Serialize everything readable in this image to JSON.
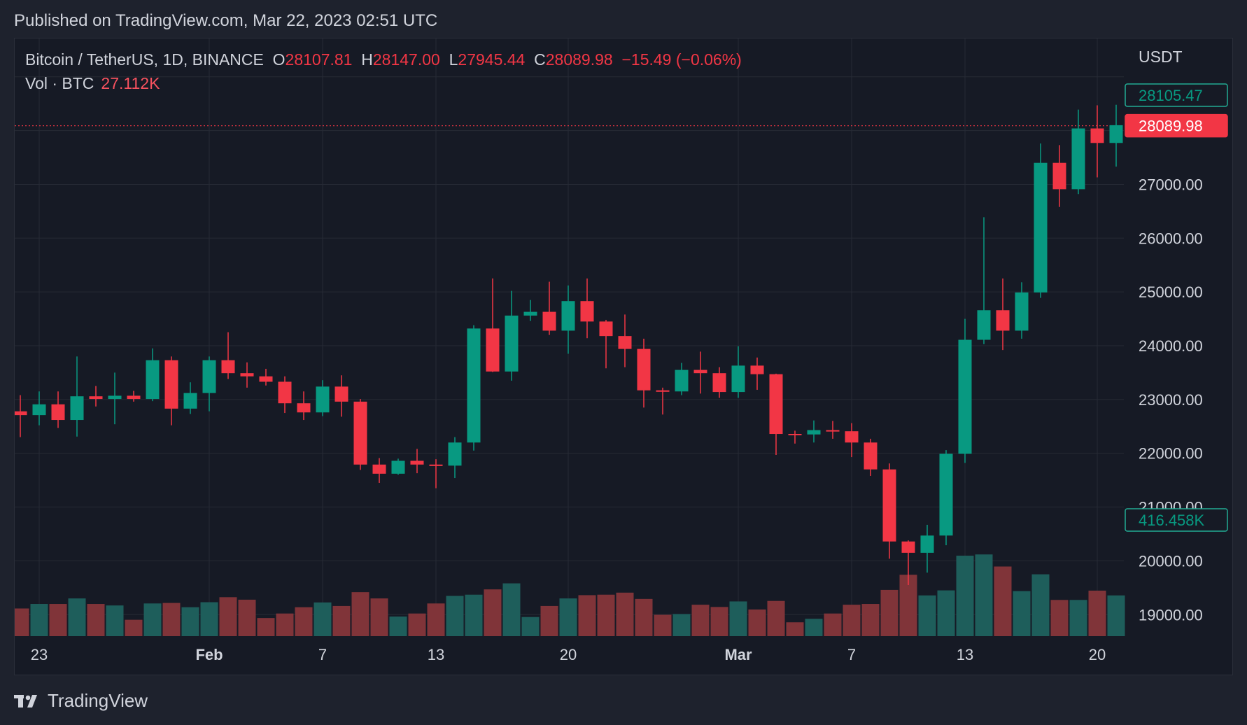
{
  "published": "Published on TradingView.com, Mar 22, 2023 02:51 UTC",
  "legend": {
    "symbol": "Bitcoin / TetherUS, 1D, BINANCE",
    "open_label": "O",
    "open": "28107.81",
    "high_label": "H",
    "high": "28147.00",
    "low_label": "L",
    "low": "27945.44",
    "close_label": "C",
    "close": "28089.98",
    "change": "−15.49 (−0.06%)",
    "vol_label": "Vol · BTC",
    "vol_value": "27.112K"
  },
  "currency": "USDT",
  "brand": "TradingView",
  "colors": {
    "up": "#089981",
    "down": "#f23645",
    "vol_up": "#1e5e5b",
    "vol_down": "#803439",
    "grid": "#262a35",
    "axis_text": "#d1d4dc",
    "tag_prev_border": "#22ab94",
    "tag_vol_border": "#22ab94"
  },
  "chart_data": {
    "type": "candlestick",
    "symbol": "Bitcoin / TetherUS",
    "interval": "1D",
    "exchange": "BINANCE",
    "price_axis": {
      "ticks": [
        "19000.00",
        "20000.00",
        "21000.00",
        "22000.00",
        "23000.00",
        "24000.00",
        "25000.00",
        "26000.00",
        "27000.00"
      ],
      "range": [
        18600,
        29400
      ]
    },
    "time_axis": {
      "labels": [
        {
          "text": "23",
          "bold": false,
          "index": 1
        },
        {
          "text": "Feb",
          "bold": true,
          "index": 10
        },
        {
          "text": "7",
          "bold": false,
          "index": 16
        },
        {
          "text": "13",
          "bold": false,
          "index": 22
        },
        {
          "text": "20",
          "bold": false,
          "index": 29
        },
        {
          "text": "Mar",
          "bold": true,
          "index": 38
        },
        {
          "text": "7",
          "bold": false,
          "index": 44
        },
        {
          "text": "13",
          "bold": false,
          "index": 50
        },
        {
          "text": "20",
          "bold": false,
          "index": 57
        }
      ]
    },
    "price_tags": {
      "prev_close": "28105.47",
      "last": "28089.98",
      "last_value": 28089.98,
      "volume": "416.458K"
    },
    "volume_max": 71000,
    "candles": [
      {
        "date": "Jan 22",
        "o": 22780,
        "h": 23080,
        "l": 22300,
        "c": 22710,
        "v": 11000
      },
      {
        "date": "Jan 23",
        "o": 22710,
        "h": 23150,
        "l": 22520,
        "c": 22910,
        "v": 12800
      },
      {
        "date": "Jan 24",
        "o": 22910,
        "h": 23150,
        "l": 22470,
        "c": 22620,
        "v": 12800
      },
      {
        "date": "Jan 25",
        "o": 22620,
        "h": 23800,
        "l": 22310,
        "c": 23060,
        "v": 15000
      },
      {
        "date": "Jan 26",
        "o": 23060,
        "h": 23250,
        "l": 22870,
        "c": 23010,
        "v": 12800
      },
      {
        "date": "Jan 27",
        "o": 23010,
        "h": 23500,
        "l": 22540,
        "c": 23070,
        "v": 12200
      },
      {
        "date": "Jan 28",
        "o": 23070,
        "h": 23160,
        "l": 22960,
        "c": 23010,
        "v": 6500
      },
      {
        "date": "Jan 29",
        "o": 23010,
        "h": 23950,
        "l": 22970,
        "c": 23730,
        "v": 13000
      },
      {
        "date": "Jan 30",
        "o": 23730,
        "h": 23800,
        "l": 22520,
        "c": 22830,
        "v": 13200
      },
      {
        "date": "Jan 31",
        "o": 22830,
        "h": 23320,
        "l": 22730,
        "c": 23120,
        "v": 11500
      },
      {
        "date": "Feb 1",
        "o": 23120,
        "h": 23800,
        "l": 22780,
        "c": 23730,
        "v": 13500
      },
      {
        "date": "Feb 2",
        "o": 23730,
        "h": 24250,
        "l": 23380,
        "c": 23490,
        "v": 15500
      },
      {
        "date": "Feb 3",
        "o": 23490,
        "h": 23690,
        "l": 23220,
        "c": 23430,
        "v": 14500
      },
      {
        "date": "Feb 4",
        "o": 23430,
        "h": 23570,
        "l": 23260,
        "c": 23330,
        "v": 7200
      },
      {
        "date": "Feb 5",
        "o": 23330,
        "h": 23430,
        "l": 22750,
        "c": 22930,
        "v": 9000
      },
      {
        "date": "Feb 6",
        "o": 22930,
        "h": 23150,
        "l": 22620,
        "c": 22760,
        "v": 11500
      },
      {
        "date": "Feb 7",
        "o": 22760,
        "h": 23360,
        "l": 22690,
        "c": 23240,
        "v": 13400
      },
      {
        "date": "Feb 8",
        "o": 23240,
        "h": 23450,
        "l": 22680,
        "c": 22960,
        "v": 12000
      },
      {
        "date": "Feb 9",
        "o": 22960,
        "h": 23010,
        "l": 21690,
        "c": 21790,
        "v": 17500
      },
      {
        "date": "Feb 10",
        "o": 21790,
        "h": 21910,
        "l": 21450,
        "c": 21620,
        "v": 15000
      },
      {
        "date": "Feb 11",
        "o": 21620,
        "h": 21900,
        "l": 21600,
        "c": 21860,
        "v": 7800
      },
      {
        "date": "Feb 12",
        "o": 21860,
        "h": 22080,
        "l": 21630,
        "c": 21790,
        "v": 9000
      },
      {
        "date": "Feb 13",
        "o": 21790,
        "h": 21890,
        "l": 21350,
        "c": 21770,
        "v": 13000
      },
      {
        "date": "Feb 14",
        "o": 21770,
        "h": 22300,
        "l": 21540,
        "c": 22200,
        "v": 16000
      },
      {
        "date": "Feb 15",
        "o": 22200,
        "h": 24380,
        "l": 22050,
        "c": 24320,
        "v": 16500
      },
      {
        "date": "Feb 16",
        "o": 24320,
        "h": 25250,
        "l": 23510,
        "c": 23520,
        "v": 18600
      },
      {
        "date": "Feb 17",
        "o": 23520,
        "h": 25020,
        "l": 23350,
        "c": 24560,
        "v": 21000
      },
      {
        "date": "Feb 18",
        "o": 24560,
        "h": 24850,
        "l": 24460,
        "c": 24630,
        "v": 7600
      },
      {
        "date": "Feb 19",
        "o": 24630,
        "h": 25190,
        "l": 24200,
        "c": 24280,
        "v": 12000
      },
      {
        "date": "Feb 20",
        "o": 24280,
        "h": 25120,
        "l": 23850,
        "c": 24830,
        "v": 15000
      },
      {
        "date": "Feb 21",
        "o": 24830,
        "h": 25250,
        "l": 24140,
        "c": 24450,
        "v": 16300
      },
      {
        "date": "Feb 22",
        "o": 24450,
        "h": 24480,
        "l": 23580,
        "c": 24180,
        "v": 16500
      },
      {
        "date": "Feb 23",
        "o": 24180,
        "h": 24580,
        "l": 23600,
        "c": 23940,
        "v": 17300
      },
      {
        "date": "Feb 24",
        "o": 23940,
        "h": 24130,
        "l": 22850,
        "c": 23170,
        "v": 14800
      },
      {
        "date": "Feb 25",
        "o": 23170,
        "h": 23220,
        "l": 22720,
        "c": 23150,
        "v": 8500
      },
      {
        "date": "Feb 26",
        "o": 23150,
        "h": 23680,
        "l": 23080,
        "c": 23550,
        "v": 8800
      },
      {
        "date": "Feb 27",
        "o": 23550,
        "h": 23890,
        "l": 23110,
        "c": 23490,
        "v": 12500
      },
      {
        "date": "Feb 28",
        "o": 23490,
        "h": 23600,
        "l": 23030,
        "c": 23140,
        "v": 11600
      },
      {
        "date": "Mar 1",
        "o": 23140,
        "h": 23990,
        "l": 23030,
        "c": 23630,
        "v": 13800
      },
      {
        "date": "Mar 2",
        "o": 23630,
        "h": 23780,
        "l": 23180,
        "c": 23470,
        "v": 10600
      },
      {
        "date": "Mar 3",
        "o": 23470,
        "h": 23480,
        "l": 21970,
        "c": 22360,
        "v": 14000
      },
      {
        "date": "Mar 4",
        "o": 22360,
        "h": 22420,
        "l": 22180,
        "c": 22350,
        "v": 5500
      },
      {
        "date": "Mar 5",
        "o": 22350,
        "h": 22610,
        "l": 22200,
        "c": 22430,
        "v": 6900
      },
      {
        "date": "Mar 6",
        "o": 22430,
        "h": 22600,
        "l": 22270,
        "c": 22410,
        "v": 9000
      },
      {
        "date": "Mar 7",
        "o": 22410,
        "h": 22560,
        "l": 21930,
        "c": 22200,
        "v": 12500
      },
      {
        "date": "Mar 8",
        "o": 22200,
        "h": 22270,
        "l": 21580,
        "c": 21700,
        "v": 12800
      },
      {
        "date": "Mar 9",
        "o": 21700,
        "h": 21810,
        "l": 20040,
        "c": 20360,
        "v": 18400
      },
      {
        "date": "Mar 10",
        "o": 20360,
        "h": 20380,
        "l": 19550,
        "c": 20150,
        "v": 24400
      },
      {
        "date": "Mar 11",
        "o": 20150,
        "h": 20670,
        "l": 19780,
        "c": 20470,
        "v": 16200
      },
      {
        "date": "Mar 12",
        "o": 20470,
        "h": 22060,
        "l": 20290,
        "c": 21990,
        "v": 18200
      },
      {
        "date": "Mar 13",
        "o": 21990,
        "h": 24500,
        "l": 21820,
        "c": 24110,
        "v": 32000
      },
      {
        "date": "Mar 14",
        "o": 24110,
        "h": 26390,
        "l": 24030,
        "c": 24660,
        "v": 32500
      },
      {
        "date": "Mar 15",
        "o": 24660,
        "h": 25250,
        "l": 23920,
        "c": 24280,
        "v": 27700
      },
      {
        "date": "Mar 16",
        "o": 24280,
        "h": 25180,
        "l": 24130,
        "c": 24990,
        "v": 17900
      },
      {
        "date": "Mar 17",
        "o": 24990,
        "h": 27760,
        "l": 24890,
        "c": 27400,
        "v": 24600
      },
      {
        "date": "Mar 18",
        "o": 27400,
        "h": 27730,
        "l": 26580,
        "c": 26910,
        "v": 14400
      },
      {
        "date": "Mar 19",
        "o": 26910,
        "h": 28390,
        "l": 26820,
        "c": 28040,
        "v": 14400
      },
      {
        "date": "Mar 20",
        "o": 28040,
        "h": 28470,
        "l": 27130,
        "c": 27770,
        "v": 18100
      },
      {
        "date": "Mar 21",
        "o": 27770,
        "h": 28480,
        "l": 27330,
        "c": 28100,
        "v": 16200
      }
    ]
  }
}
